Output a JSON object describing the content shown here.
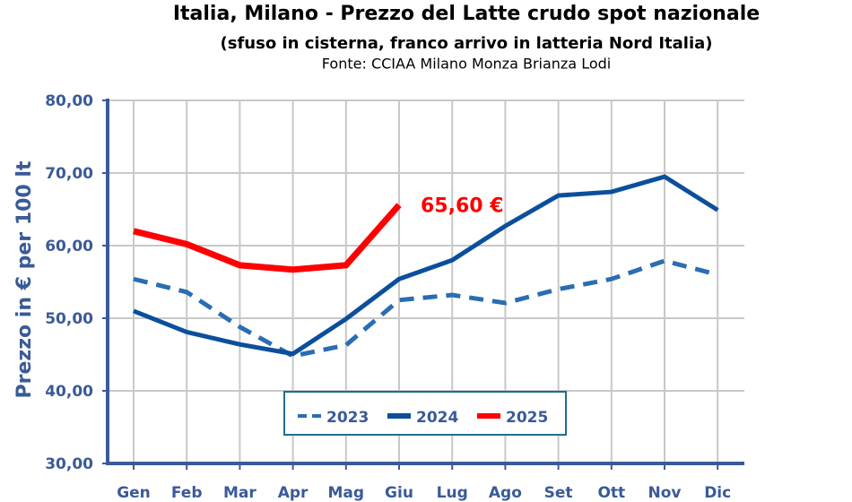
{
  "chart_data": {
    "type": "line",
    "title": "Italia, Milano - Prezzo del Latte crudo spot nazionale",
    "subtitle": "(sfuso in cisterna, franco arrivo in latteria Nord Italia)",
    "source": "Fonte: CCIAA Milano Monza Brianza Lodi",
    "ylabel": "Prezzo in € per 100 lt",
    "categories": [
      "Gen",
      "Feb",
      "Mar",
      "Apr",
      "Mag",
      "Giu",
      "Lug",
      "Ago",
      "Set",
      "Ott",
      "Nov",
      "Dic"
    ],
    "series": [
      {
        "name": "2023",
        "color": "#2a6db3",
        "dashed": true,
        "values": [
          55.4,
          53.6,
          48.8,
          44.8,
          46.3,
          52.5,
          53.2,
          52.1,
          54.0,
          55.4,
          57.9,
          56.0
        ]
      },
      {
        "name": "2024",
        "color": "#0b4f9c",
        "dashed": false,
        "values": [
          51.0,
          48.1,
          46.4,
          45.1,
          49.9,
          55.4,
          58.0,
          62.7,
          66.9,
          67.4,
          69.5,
          64.9
        ]
      },
      {
        "name": "2025",
        "color": "#ff0000",
        "dashed": false,
        "values": [
          62.0,
          60.2,
          57.3,
          56.7,
          57.3,
          65.6,
          null,
          null,
          null,
          null,
          null,
          null
        ]
      }
    ],
    "annotation": {
      "text": "65,60 €",
      "series": 2,
      "index": 5
    },
    "ylim": [
      30,
      80
    ],
    "yticks": [
      {
        "value": 30,
        "label": "30,00"
      },
      {
        "value": 40,
        "label": "40,00"
      },
      {
        "value": 50,
        "label": "50,00"
      },
      {
        "value": 60,
        "label": "60,00"
      },
      {
        "value": 70,
        "label": "70,00"
      },
      {
        "value": 80,
        "label": "80,00"
      }
    ],
    "grid": true,
    "legend": "bottom"
  }
}
